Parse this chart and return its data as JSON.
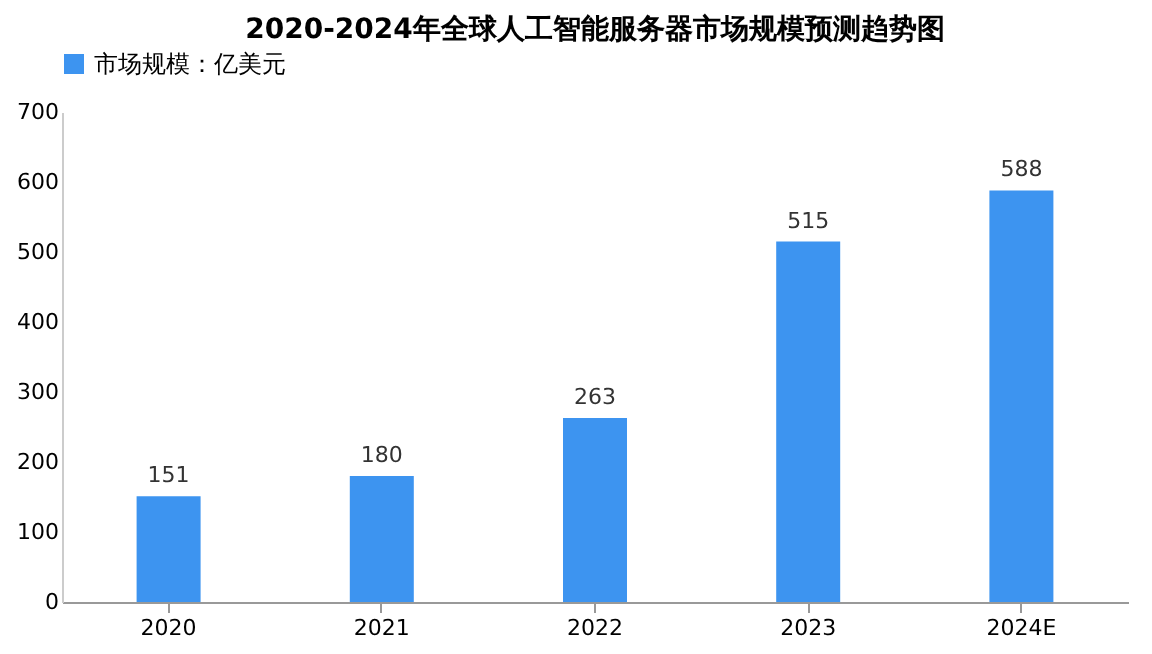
{
  "chart_data": {
    "type": "bar",
    "title": "2020-2024年全球人工智能服务器市场规模预测趋势图",
    "categories": [
      "2020",
      "2021",
      "2022",
      "2023",
      "2024E"
    ],
    "series": [
      {
        "name": "市场规模：亿美元",
        "color": "#3d94f0",
        "values": [
          151,
          180,
          263,
          515,
          588
        ]
      }
    ],
    "ylim": [
      0,
      700
    ],
    "yticks": [
      0,
      100,
      200,
      300,
      400,
      500,
      600,
      700
    ],
    "data_labels": true,
    "legend": "top",
    "grid": false
  }
}
